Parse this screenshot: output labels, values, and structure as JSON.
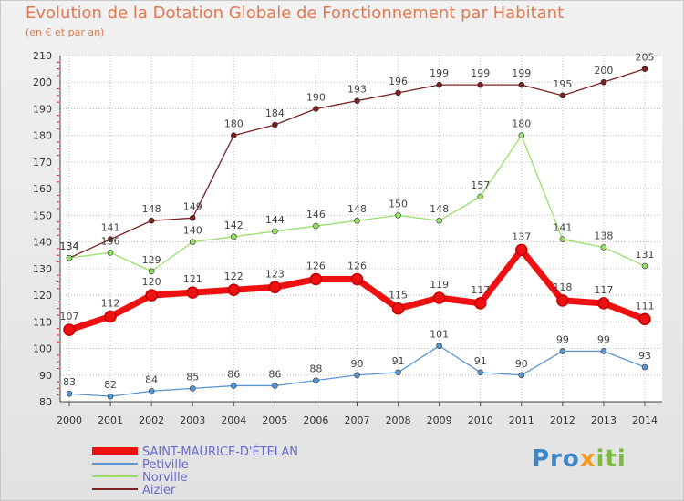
{
  "header": {
    "title": "Evolution de la Dotation Globale de Fonctionnement par Habitant",
    "subtitle": "(en € et par an)"
  },
  "logo": {
    "part1": "Pro",
    "part2": "x",
    "part3": "iti"
  },
  "chart_data": {
    "type": "line",
    "title": "Evolution de la Dotation Globale de Fonctionnement par Habitant",
    "subtitle": "(en € et par an)",
    "xlabel": "",
    "ylabel": "",
    "ylim": [
      80,
      210
    ],
    "yticks": [
      "80",
      "90",
      "100",
      "110",
      "120",
      "130",
      "140",
      "150",
      "160",
      "170",
      "180",
      "190",
      "200",
      "210"
    ],
    "categories": [
      "2000",
      "2001",
      "2002",
      "2003",
      "2004",
      "2005",
      "2006",
      "2007",
      "2008",
      "2009",
      "2010",
      "2011",
      "2012",
      "2013",
      "2014"
    ],
    "legend_position": "bottom-left",
    "series": [
      {
        "name": "Aizier",
        "color": "#7a2222",
        "labels": "above",
        "values": [
          134,
          141,
          148,
          149,
          180,
          184,
          190,
          193,
          196,
          199,
          199,
          199,
          195,
          200,
          205
        ]
      },
      {
        "name": "Norville",
        "color": "#99e066",
        "labels": "above",
        "values": [
          134,
          136,
          129,
          140,
          142,
          144,
          146,
          148,
          150,
          148,
          157,
          180,
          141,
          138,
          131
        ]
      },
      {
        "name": "SAINT-MAURICE-D'ÉTELAN",
        "color": "#ee1111",
        "labels": "above",
        "values": [
          107,
          112,
          120,
          121,
          122,
          123,
          126,
          126,
          115,
          119,
          117,
          137,
          118,
          117,
          111
        ]
      },
      {
        "name": "Petiville",
        "color": "#5a96d2",
        "labels": "above",
        "values": [
          83,
          82,
          84,
          85,
          86,
          86,
          88,
          90,
          91,
          101,
          91,
          90,
          99,
          99,
          93
        ]
      }
    ],
    "legend": [
      "SAINT-MAURICE-D'ÉTELAN",
      "Petiville",
      "Norville",
      "Aizier"
    ]
  }
}
